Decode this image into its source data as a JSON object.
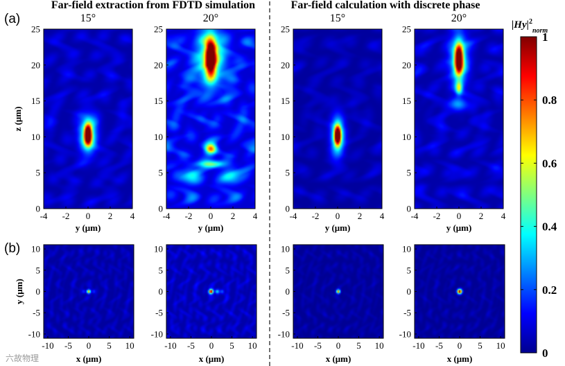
{
  "figure": {
    "left_title": "Far-field extraction from FDTD simulation",
    "right_title": "Far-field calculation with discrete phase",
    "panel_a_label": "(a)",
    "panel_b_label": "(b)",
    "watermark": "六故物理"
  },
  "colorbar": {
    "title_main": "|Hy|",
    "title_sup": "2",
    "title_sub": "norm",
    "ticks": [
      "1",
      "0.8",
      "0.6",
      "0.4",
      "0.2",
      "0"
    ],
    "colormap": "jet",
    "range": [
      0,
      1
    ]
  },
  "chart_data": [
    {
      "type": "heatmap",
      "panel": "(a)",
      "group": "Far-field extraction from FDTD simulation",
      "title": "15°",
      "xlabel": "y (μm)",
      "ylabel": "z (μm)",
      "xlim": [
        -4,
        4
      ],
      "ylim": [
        0,
        25
      ],
      "xticks": [
        "-4",
        "-2",
        "0",
        "2",
        "4"
      ],
      "yticks": [
        "0",
        "5",
        "10",
        "15",
        "20",
        "25"
      ],
      "colormap": "jet",
      "background": 0.04,
      "texture": [
        0.06,
        0.1
      ],
      "spots": [
        {
          "x": 0,
          "y": 10.3,
          "intensity": 1.0,
          "sx": 0.22,
          "sy": 0.9
        },
        {
          "x": 0,
          "y": 10.3,
          "intensity": 0.45,
          "sx": 0.55,
          "sy": 1.8
        }
      ]
    },
    {
      "type": "heatmap",
      "panel": "(a)",
      "group": "Far-field extraction from FDTD simulation",
      "title": "20°",
      "xlabel": "y (μm)",
      "ylabel": "",
      "xlim": [
        -4,
        4
      ],
      "ylim": [
        0,
        25
      ],
      "xticks": [
        "-4",
        "-2",
        "0",
        "2",
        "4"
      ],
      "yticks": [
        "0",
        "5",
        "10",
        "15",
        "20",
        "25"
      ],
      "colormap": "jet",
      "background": 0.08,
      "texture": [
        0.1,
        0.2
      ],
      "spots": [
        {
          "x": 0,
          "y": 21,
          "intensity": 1.0,
          "sx": 0.32,
          "sy": 1.7
        },
        {
          "x": 0,
          "y": 21,
          "intensity": 0.4,
          "sx": 0.9,
          "sy": 2.8
        },
        {
          "x": 0,
          "y": 8.3,
          "intensity": 0.62,
          "sx": 0.35,
          "sy": 0.5
        },
        {
          "x": 0,
          "y": 6.2,
          "intensity": 0.35,
          "sx": 0.9,
          "sy": 0.35
        },
        {
          "x": -1.8,
          "y": 4.5,
          "intensity": 0.22,
          "sx": 0.6,
          "sy": 0.8
        },
        {
          "x": 1.8,
          "y": 4.5,
          "intensity": 0.22,
          "sx": 0.6,
          "sy": 0.8
        }
      ]
    },
    {
      "type": "heatmap",
      "panel": "(a)",
      "group": "Far-field calculation with discrete phase",
      "title": "15°",
      "xlabel": "y (μm)",
      "ylabel": "",
      "xlim": [
        -4,
        4
      ],
      "ylim": [
        0,
        25
      ],
      "xticks": [
        "-4",
        "-2",
        "0",
        "2",
        "4"
      ],
      "yticks": [
        "0",
        "5",
        "10",
        "15",
        "20",
        "25"
      ],
      "colormap": "jet",
      "background": 0.03,
      "texture": [
        0.04,
        0.08
      ],
      "spots": [
        {
          "x": 0,
          "y": 10.2,
          "intensity": 1.0,
          "sx": 0.2,
          "sy": 0.9
        },
        {
          "x": 0,
          "y": 10.2,
          "intensity": 0.4,
          "sx": 0.45,
          "sy": 2.0
        }
      ]
    },
    {
      "type": "heatmap",
      "panel": "(a)",
      "group": "Far-field calculation with discrete phase",
      "title": "20°",
      "xlabel": "y (μm)",
      "ylabel": "",
      "xlim": [
        -4,
        4
      ],
      "ylim": [
        0,
        25
      ],
      "xticks": [
        "-4",
        "-2",
        "0",
        "2",
        "4"
      ],
      "yticks": [
        "0",
        "5",
        "10",
        "15",
        "20",
        "25"
      ],
      "colormap": "jet",
      "background": 0.04,
      "texture": [
        0.06,
        0.12
      ],
      "spots": [
        {
          "x": 0,
          "y": 20.8,
          "intensity": 1.0,
          "sx": 0.25,
          "sy": 1.4
        },
        {
          "x": 0,
          "y": 20.8,
          "intensity": 0.35,
          "sx": 0.6,
          "sy": 2.6
        },
        {
          "x": 0,
          "y": 16.8,
          "intensity": 0.42,
          "sx": 0.2,
          "sy": 0.6
        },
        {
          "x": 0,
          "y": 14.5,
          "intensity": 0.22,
          "sx": 0.5,
          "sy": 0.6
        }
      ]
    },
    {
      "type": "heatmap",
      "panel": "(b)",
      "group": "Far-field extraction from FDTD simulation",
      "title": "15°",
      "xlabel": "x (μm)",
      "ylabel": "y (μm)",
      "xlim": [
        -11,
        11
      ],
      "ylim": [
        -11,
        11
      ],
      "xticks": [
        "-10",
        "-5",
        "0",
        "5",
        "10"
      ],
      "yticks": [
        "-10",
        "-5",
        "0",
        "5",
        "10"
      ],
      "colormap": "jet",
      "background": 0.03,
      "texture": [
        0.04,
        0.07
      ],
      "spots": [
        {
          "x": 0,
          "y": 0,
          "intensity": 0.75,
          "sx": 0.3,
          "sy": 0.3
        },
        {
          "x": -1.2,
          "y": 0,
          "intensity": 0.15,
          "sx": 0.3,
          "sy": 0.3
        },
        {
          "x": 1.2,
          "y": 0,
          "intensity": 0.15,
          "sx": 0.3,
          "sy": 0.3
        }
      ]
    },
    {
      "type": "heatmap",
      "panel": "(b)",
      "group": "Far-field extraction from FDTD simulation",
      "title": "20°",
      "xlabel": "x (μm)",
      "ylabel": "",
      "xlim": [
        -11,
        11
      ],
      "ylim": [
        -11,
        11
      ],
      "xticks": [
        "-10",
        "-5",
        "0",
        "5",
        "10"
      ],
      "yticks": [
        "-10",
        "-5",
        "0",
        "5",
        "10"
      ],
      "colormap": "jet",
      "background": 0.04,
      "texture": [
        0.05,
        0.1
      ],
      "spots": [
        {
          "x": -0.1,
          "y": 0,
          "intensity": 1.0,
          "sx": 0.35,
          "sy": 0.35
        },
        {
          "x": 1.4,
          "y": 0,
          "intensity": 0.3,
          "sx": 0.35,
          "sy": 0.35
        },
        {
          "x": 2.6,
          "y": 0,
          "intensity": 0.18,
          "sx": 0.35,
          "sy": 0.35
        }
      ]
    },
    {
      "type": "heatmap",
      "panel": "(b)",
      "group": "Far-field calculation with discrete phase",
      "title": "15°",
      "xlabel": "x (μm)",
      "ylabel": "",
      "xlim": [
        -11,
        11
      ],
      "ylim": [
        -11,
        11
      ],
      "xticks": [
        "-10",
        "-5",
        "0",
        "5",
        "10"
      ],
      "yticks": [
        "-10",
        "-5",
        "0",
        "5",
        "10"
      ],
      "colormap": "jet",
      "background": 0.02,
      "texture": [
        0.03,
        0.05
      ],
      "spots": [
        {
          "x": 0,
          "y": 0,
          "intensity": 0.8,
          "sx": 0.3,
          "sy": 0.3
        }
      ]
    },
    {
      "type": "heatmap",
      "panel": "(b)",
      "group": "Far-field calculation with discrete phase",
      "title": "20°",
      "xlabel": "x (μm)",
      "ylabel": "",
      "xlim": [
        -11,
        11
      ],
      "ylim": [
        -11,
        11
      ],
      "xticks": [
        "-10",
        "-5",
        "0",
        "5",
        "10"
      ],
      "yticks": [
        "-10",
        "-5",
        "0",
        "5",
        "10"
      ],
      "colormap": "jet",
      "background": 0.02,
      "texture": [
        0.03,
        0.05
      ],
      "spots": [
        {
          "x": 0,
          "y": 0,
          "intensity": 1.0,
          "sx": 0.38,
          "sy": 0.38
        }
      ]
    }
  ]
}
